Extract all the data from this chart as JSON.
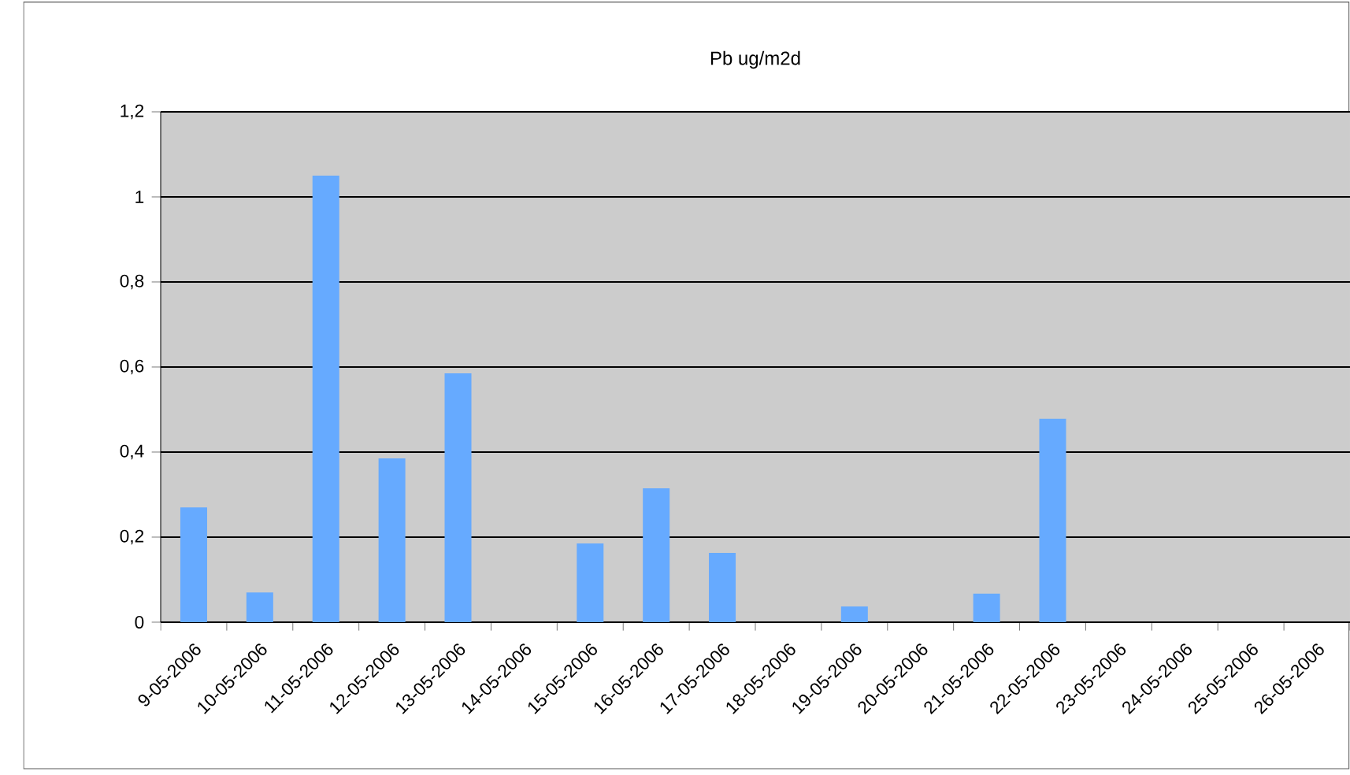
{
  "chart_data": {
    "type": "bar",
    "title": "Pb ug/m2d",
    "categories": [
      "9-05-2006",
      "10-05-2006",
      "11-05-2006",
      "12-05-2006",
      "13-05-2006",
      "14-05-2006",
      "15-05-2006",
      "16-05-2006",
      "17-05-2006",
      "18-05-2006",
      "19-05-2006",
      "20-05-2006",
      "21-05-2006",
      "22-05-2006",
      "23-05-2006",
      "24-05-2006",
      "25-05-2006",
      "26-05-2006"
    ],
    "values": [
      0.27,
      0.07,
      1.05,
      0.385,
      0.585,
      0,
      0.185,
      0.315,
      0.163,
      0,
      0.037,
      0,
      0.067,
      0.478,
      0,
      0,
      0,
      0
    ],
    "color": "#66aaff",
    "ylim": [
      0,
      1.2
    ],
    "yticks": [
      0,
      {
        "value": 0.2,
        "label": "0,2"
      },
      {
        "value": 0.4,
        "label": "0,4"
      },
      {
        "value": 0.6,
        "label": "0,6"
      },
      {
        "value": 0.8,
        "label": "0,8"
      },
      1,
      {
        "value": 1.2,
        "label": "1,2"
      }
    ],
    "grid": "y"
  }
}
